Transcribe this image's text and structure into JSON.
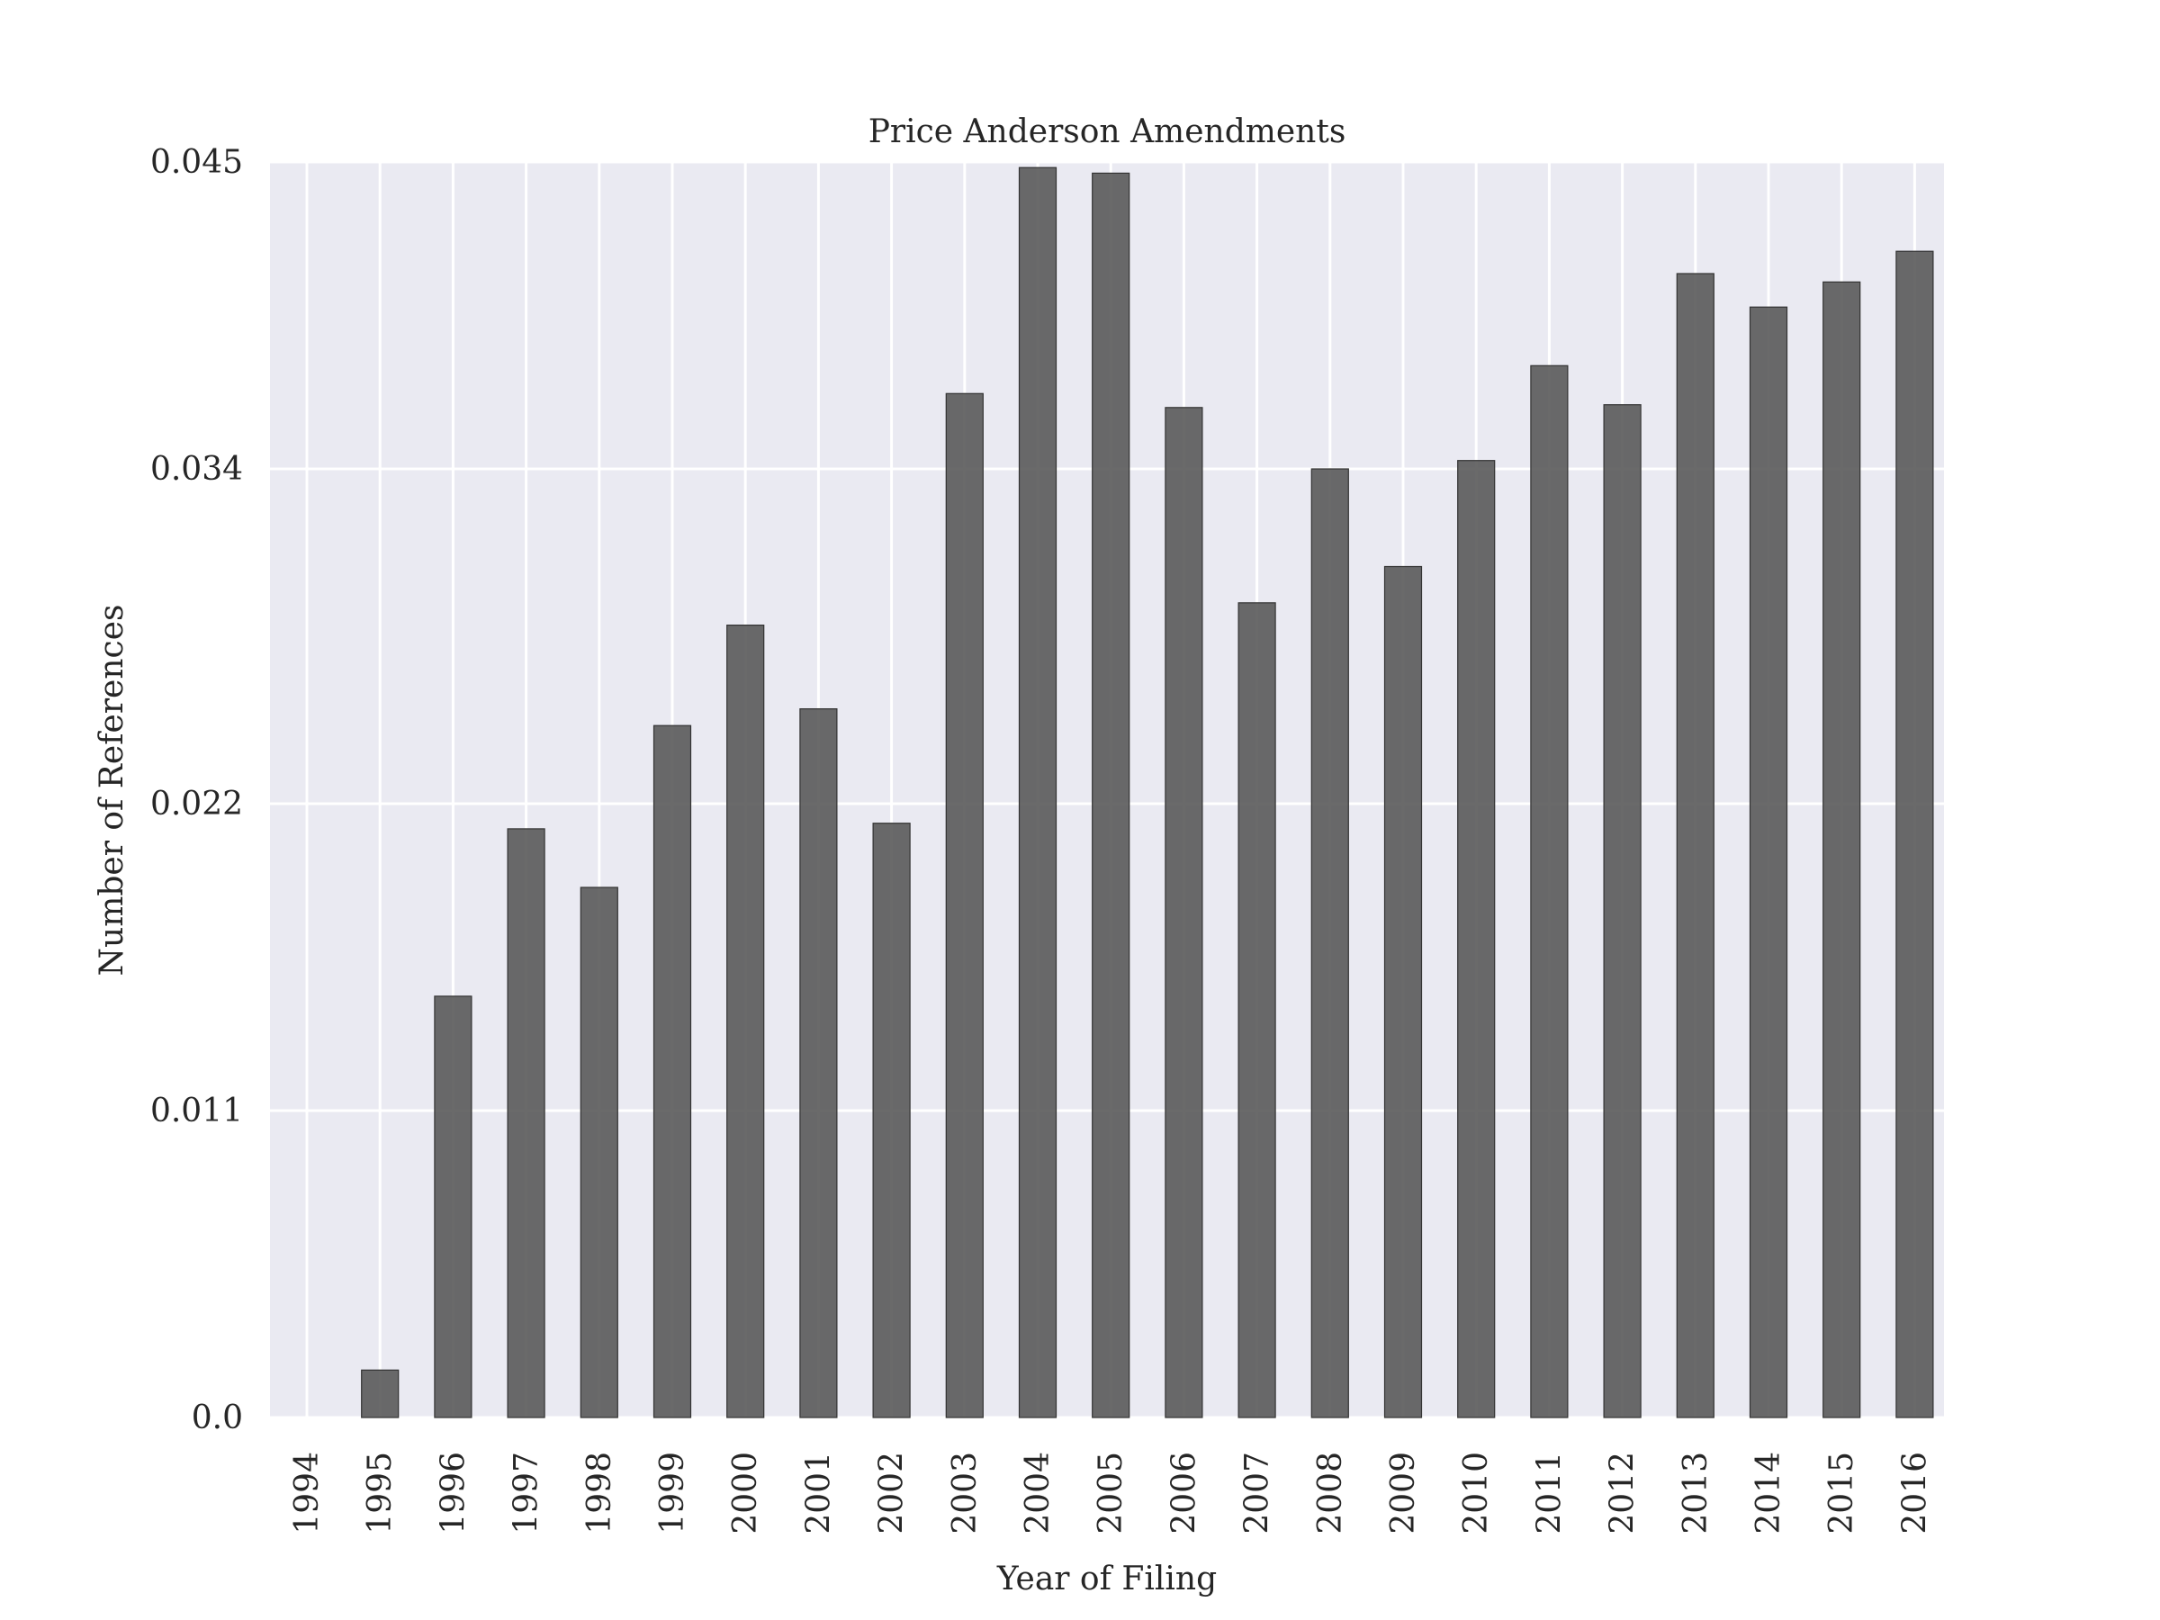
{
  "chart_data": {
    "type": "bar",
    "title": "Price Anderson Amendments",
    "xlabel": "Year of Filing",
    "ylabel": "Number of References",
    "categories": [
      "1994",
      "1995",
      "1996",
      "1997",
      "1998",
      "1999",
      "2000",
      "2001",
      "2002",
      "2003",
      "2004",
      "2005",
      "2006",
      "2007",
      "2008",
      "2009",
      "2010",
      "2011",
      "2012",
      "2013",
      "2014",
      "2015",
      "2016"
    ],
    "values": [
      0.0,
      0.0017,
      0.0151,
      0.0211,
      0.019,
      0.0248,
      0.0284,
      0.0254,
      0.0213,
      0.0367,
      0.0448,
      0.0446,
      0.0362,
      0.0292,
      0.034,
      0.0305,
      0.0343,
      0.0377,
      0.0363,
      0.041,
      0.0398,
      0.0407,
      0.0418
    ],
    "ylim": [
      0,
      0.045
    ],
    "yticks": [
      0.0,
      0.011,
      0.022,
      0.034,
      0.045
    ],
    "ytick_labels": [
      "0.0",
      "0.011",
      "0.022",
      "0.034",
      "0.045"
    ],
    "grid": true,
    "colors": {
      "bar": "#555555",
      "background": "#eaeaf2",
      "grid": "#ffffff"
    }
  }
}
